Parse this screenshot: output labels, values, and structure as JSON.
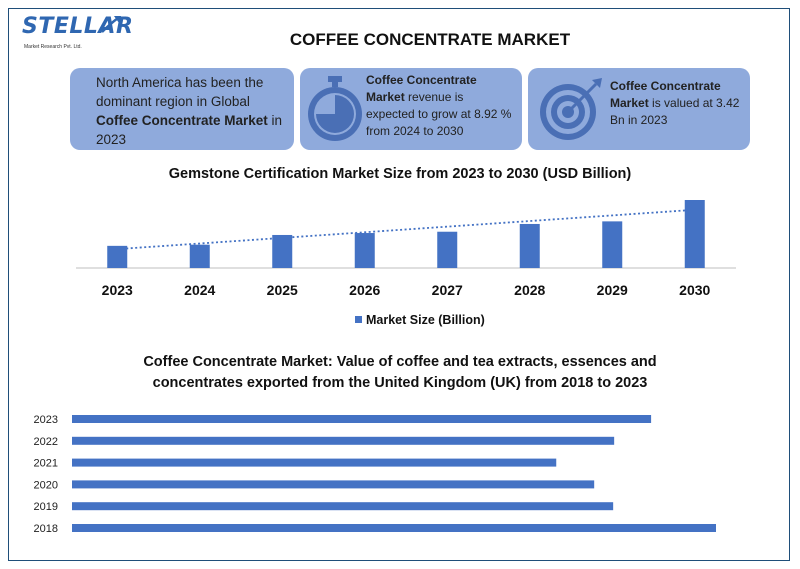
{
  "logo": {
    "name": "STELLAR",
    "subtitle": "Market Research Pvt. Ltd."
  },
  "header": {
    "title": "COFFEE CONCENTRATE MARKET"
  },
  "cards": {
    "region": {
      "pre": "North America has been the dominant region in Global ",
      "bold": "Coffee Concentrate Market",
      "post": " in 2023"
    },
    "growth": {
      "bold": "Coffee Concentrate Market",
      "post": " revenue is expected to grow at 8.92 % from 2024 to 2030"
    },
    "value": {
      "bold": "Coffee Concentrate Market",
      "post": " is valued at 3.42 Bn in 2023"
    }
  },
  "colors": {
    "bar": "#4472c4",
    "card": "#8faadc",
    "icon": "#4a6fb5"
  },
  "chart_data": [
    {
      "type": "bar",
      "title": "Gemstone Certification Market Size from 2023 to 2030 (USD Billion)",
      "categories": [
        "2023",
        "2024",
        "2025",
        "2026",
        "2027",
        "2028",
        "2029",
        "2030"
      ],
      "series": [
        {
          "name": "Market Size (Billion)",
          "values": [
            3.42,
            3.6,
            5.1,
            5.4,
            5.6,
            6.8,
            7.2,
            10.5
          ]
        }
      ],
      "trendline": "dotted linear",
      "legend": "bottom",
      "ylim": [
        0,
        10.5
      ]
    },
    {
      "type": "bar",
      "orientation": "horizontal",
      "title": "Coffee Concentrate Market: Value of coffee and tea extracts, essences and concentrates exported from the United Kingdom (UK) from 2018 to 2023",
      "categories": [
        "2023",
        "2022",
        "2021",
        "2020",
        "2019",
        "2018"
      ],
      "series": [
        {
          "values": [
            580,
            543,
            485,
            523,
            542,
            645
          ]
        }
      ],
      "xlim": [
        0,
        645
      ]
    }
  ]
}
